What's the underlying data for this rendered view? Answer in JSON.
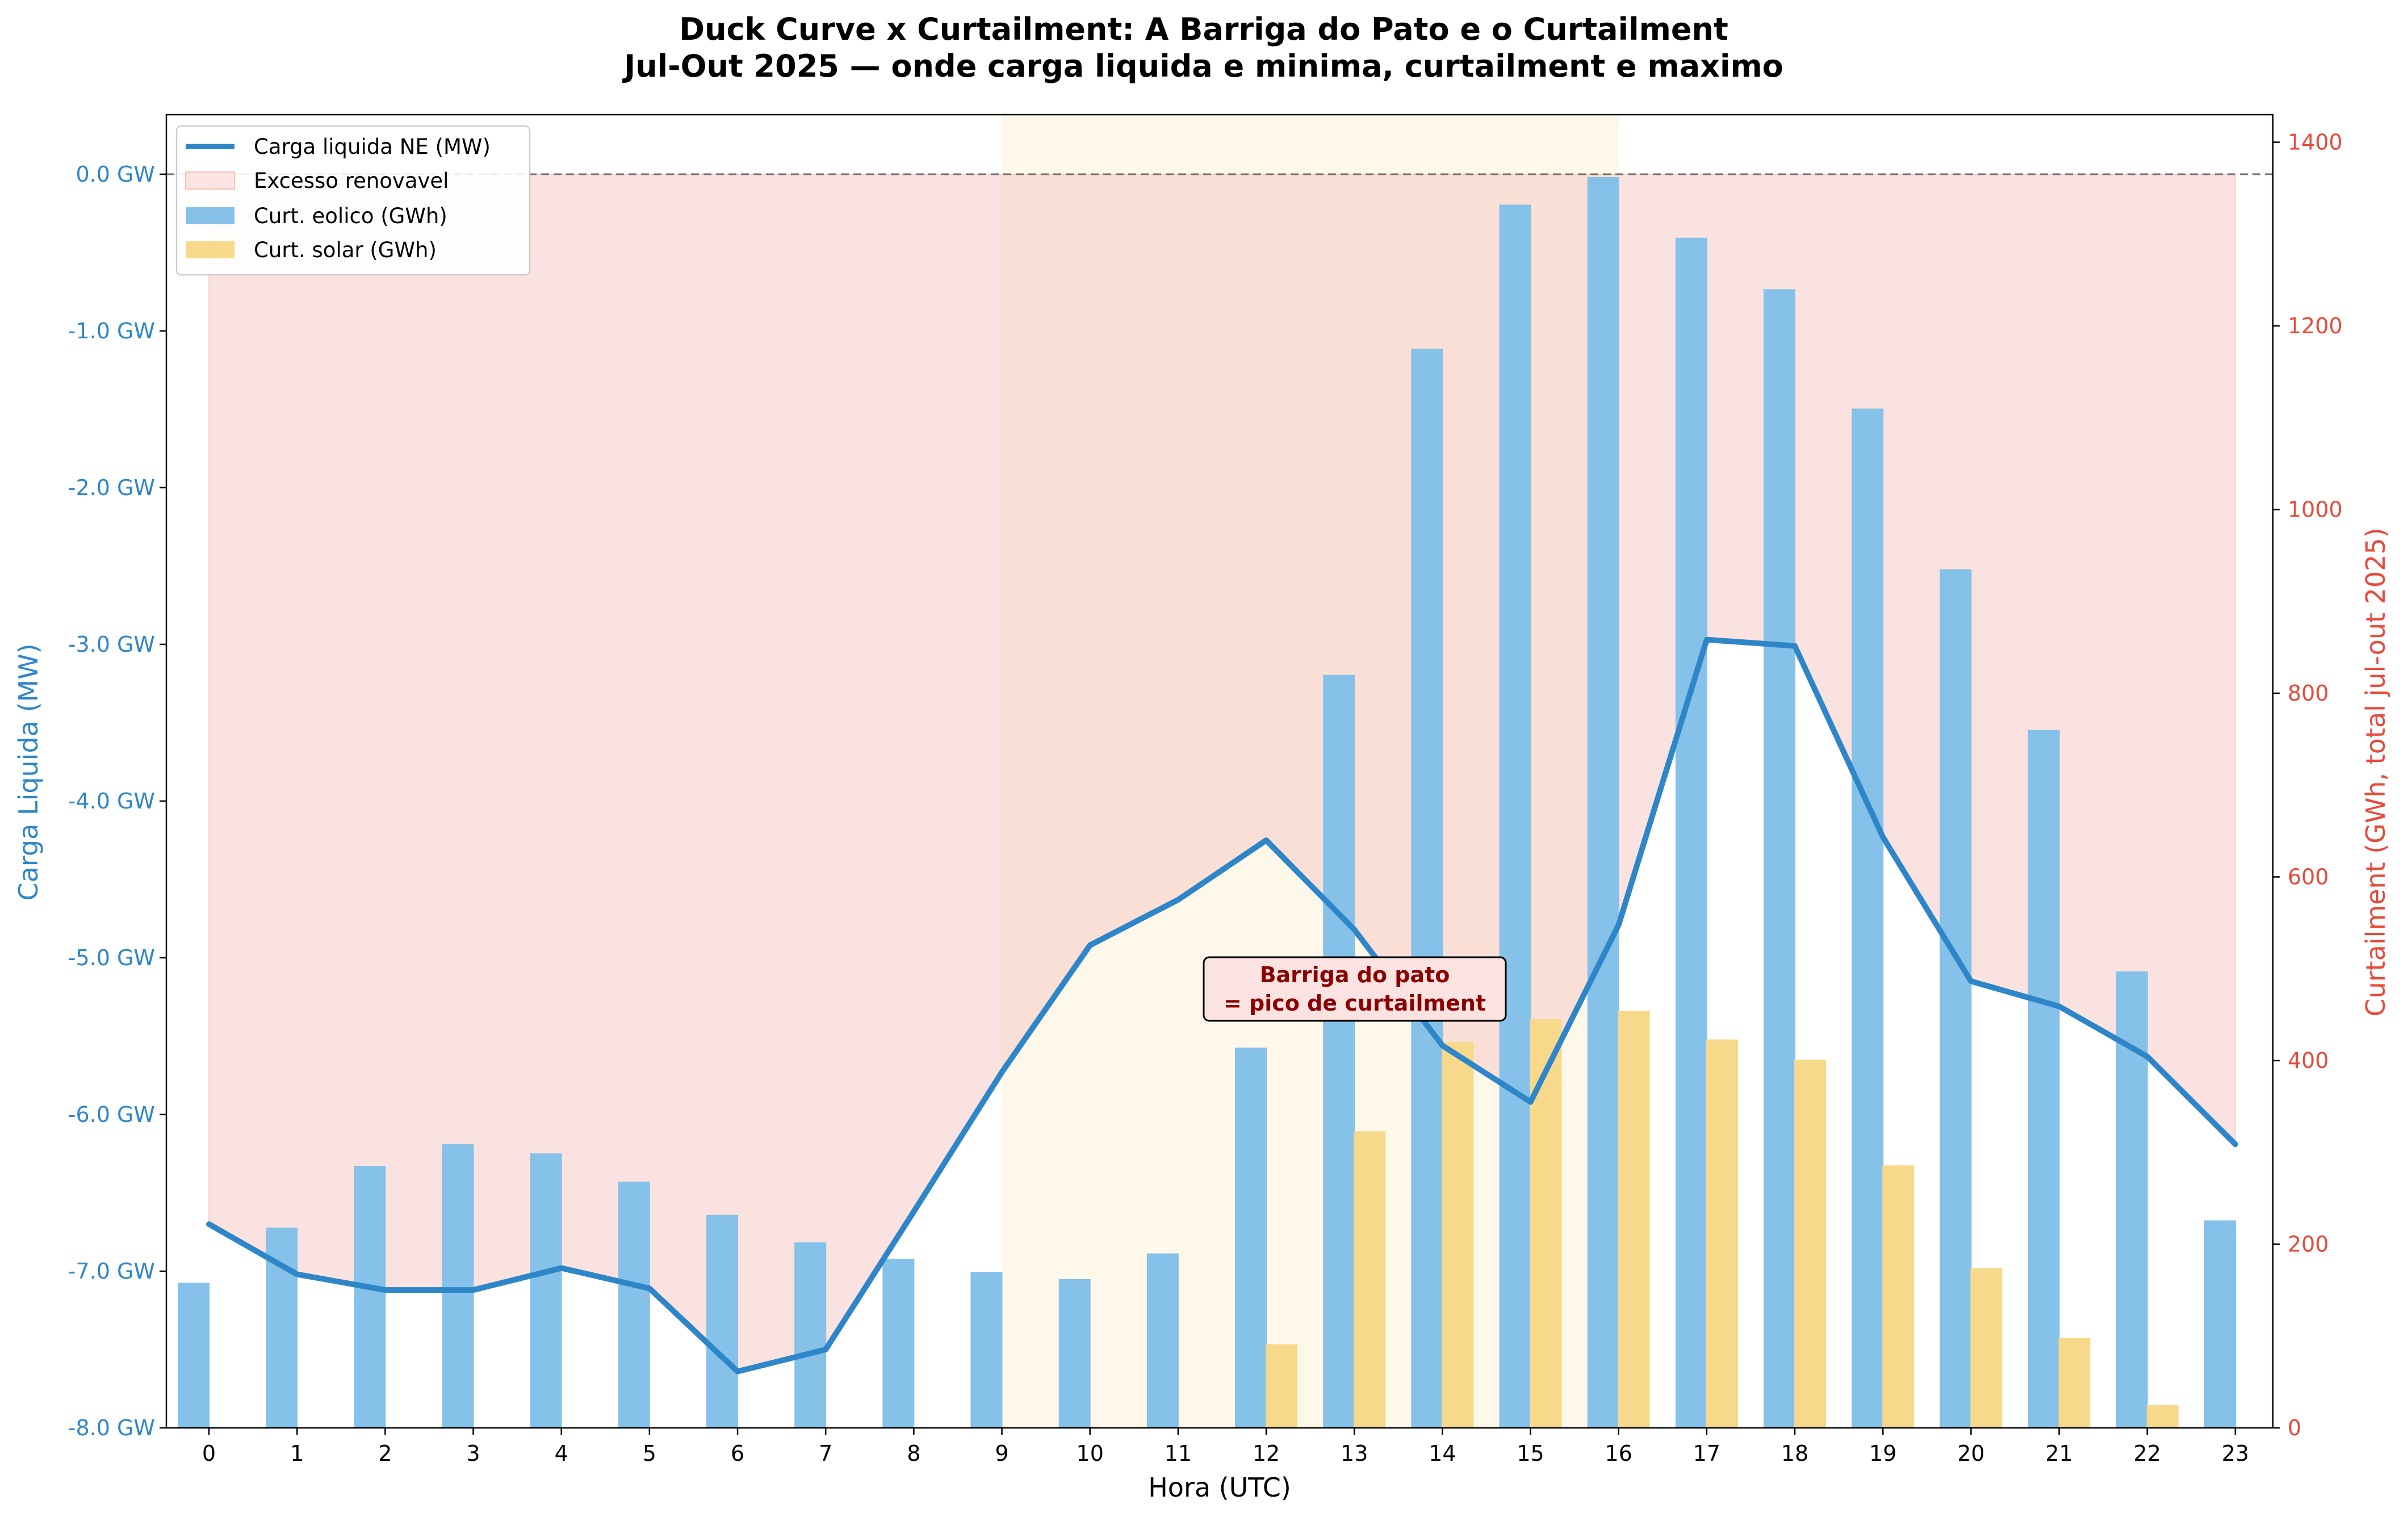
{
  "chart_data": {
    "type": "bar+line",
    "title": "Duck Curve x Curtailment: A Barriga do Pato e o Curtailment",
    "subtitle": "Jul-Out 2025 — onde carga liquida e minima, curtailment e maximo",
    "xlabel": "Hora (UTC)",
    "ylabel_left": "Carga Liquida (MW)",
    "ylabel_right": "Curtailment (GWh, total jul-out 2025)",
    "ylim_left": [
      -8000,
      380
    ],
    "ylim_right": [
      0,
      1430
    ],
    "left_ticks": [
      0,
      -1000,
      -2000,
      -3000,
      -4000,
      -5000,
      -6000,
      -7000,
      -8000
    ],
    "left_tick_labels": [
      "0.0 GW",
      "-1.0 GW",
      "-2.0 GW",
      "-3.0 GW",
      "-4.0 GW",
      "-5.0 GW",
      "-6.0 GW",
      "-7.0 GW",
      "-8.0 GW"
    ],
    "right_ticks": [
      0,
      200,
      400,
      600,
      800,
      1000,
      1200,
      1400
    ],
    "right_tick_labels": [
      "0",
      "200",
      "400",
      "600",
      "800",
      "1000",
      "1200",
      "1400"
    ],
    "hours": [
      "0",
      "1",
      "2",
      "3",
      "4",
      "5",
      "6",
      "7",
      "8",
      "9",
      "10",
      "11",
      "12",
      "13",
      "14",
      "15",
      "16",
      "17",
      "18",
      "19",
      "20",
      "21",
      "22",
      "23"
    ],
    "series": [
      {
        "name": "Carga liquida NE (MW)",
        "kind": "line",
        "axis": "left",
        "color": "#2e86c8",
        "values": [
          -6700,
          -7020,
          -7120,
          -7120,
          -6980,
          -7110,
          -7640,
          -7500,
          -6620,
          -5730,
          -4920,
          -4630,
          -4250,
          -4820,
          -5560,
          -5920,
          -4790,
          -2970,
          -3010,
          -4230,
          -5150,
          -5310,
          -5630,
          -6190
        ]
      },
      {
        "name": "Curt. eolico (GWh)",
        "kind": "bar",
        "axis": "right",
        "color": "#85c1e9",
        "values": [
          158,
          218,
          285,
          309,
          299,
          268,
          232,
          202,
          184,
          170,
          162,
          190,
          414,
          820,
          1175,
          1332,
          1362,
          1296,
          1240,
          1110,
          935,
          760,
          497,
          226
        ]
      },
      {
        "name": "Curt. solar (GWh)",
        "kind": "bar",
        "axis": "right",
        "color": "#f7d98b",
        "values": [
          0,
          0,
          0,
          0,
          0,
          0,
          0,
          0,
          0,
          0,
          0,
          0,
          91,
          323,
          420,
          445,
          454,
          423,
          401,
          286,
          174,
          98,
          25,
          0
        ]
      }
    ],
    "legend": {
      "position": "top-left",
      "entries": [
        "Carga liquida NE (MW)",
        "Excesso renovavel",
        "Curt. eolico (GWh)",
        "Curt. solar (GWh)"
      ]
    },
    "excess_region": {
      "label": "Excesso renovavel",
      "from_hour": 0,
      "to_hour": 23,
      "color": "#f5c6c2"
    },
    "highlight_band": {
      "from_hour": 9,
      "to_hour": 16,
      "color": "#fdf3dc"
    },
    "reference_line": {
      "value": 0,
      "style": "dashed"
    },
    "annotation": {
      "line1": "Barriga do pato",
      "line2": "= pico de curtailment",
      "near_hour": 13
    }
  }
}
